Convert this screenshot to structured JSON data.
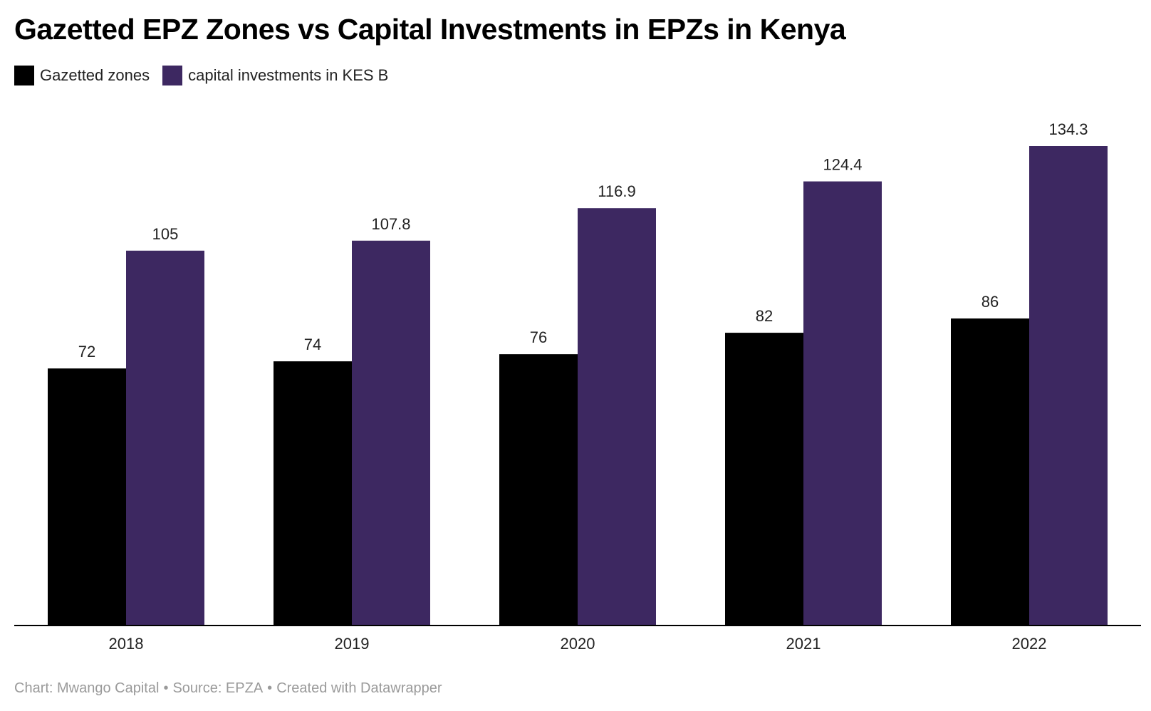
{
  "title": "Gazetted EPZ Zones vs Capital Investments in EPZs in Kenya",
  "legend": [
    {
      "label": "Gazetted zones",
      "color": "#000000"
    },
    {
      "label": "capital investments in KES B",
      "color": "#3d2861"
    }
  ],
  "chart_data": {
    "type": "bar",
    "categories": [
      "2018",
      "2019",
      "2020",
      "2021",
      "2022"
    ],
    "series": [
      {
        "name": "Gazetted zones",
        "color": "#000000",
        "values": [
          72,
          74,
          76,
          82,
          86
        ],
        "labels": [
          "72",
          "74",
          "76",
          "82",
          "86"
        ]
      },
      {
        "name": "capital investments in KES B",
        "color": "#3d2861",
        "values": [
          105,
          107.8,
          116.9,
          124.4,
          134.3
        ],
        "labels": [
          "105",
          "107.8",
          "116.9",
          "124.4",
          "134.3"
        ]
      }
    ],
    "ylim": [
      0,
      134.3
    ],
    "grid": false,
    "legend_position": "top-left"
  },
  "footer": {
    "chart_credit": "Chart: Mwango Capital",
    "source": "Source: EPZA",
    "created": "Created with Datawrapper",
    "separator": "•"
  }
}
